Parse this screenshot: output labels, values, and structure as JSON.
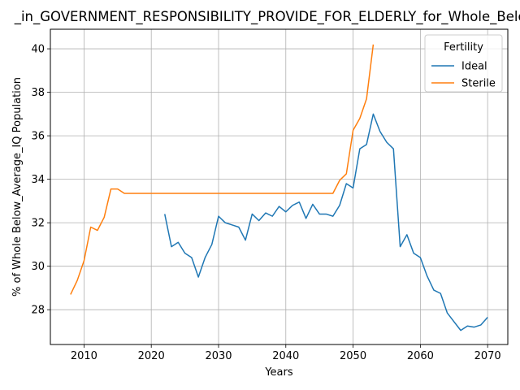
{
  "chart_data": {
    "type": "line",
    "title": "_in_GOVERNMENT_RESPONSIBILITY_PROVIDE_FOR_ELDERLY_for_Whole_Below_",
    "xlabel": "Years",
    "ylabel": "% of Whole Below_Average_IQ Population",
    "xlim": [
      2005,
      2073
    ],
    "ylim": [
      26.4,
      40.9
    ],
    "xticks": [
      2010,
      2020,
      2030,
      2040,
      2050,
      2060,
      2070
    ],
    "yticks": [
      28,
      30,
      32,
      34,
      36,
      38,
      40
    ],
    "grid": true,
    "legend": {
      "title": "Fertility",
      "placement": "top-right"
    },
    "series": [
      {
        "name": "Ideal",
        "color": "#1f77b4",
        "x": [
          2022,
          2023,
          2024,
          2025,
          2026,
          2027,
          2028,
          2029,
          2030,
          2031,
          2032,
          2033,
          2034,
          2035,
          2036,
          2037,
          2038,
          2039,
          2040,
          2041,
          2042,
          2043,
          2044,
          2045,
          2046,
          2047,
          2048,
          2049,
          2050,
          2051,
          2052,
          2053,
          2054,
          2055,
          2056,
          2057,
          2058,
          2059,
          2060,
          2061,
          2062,
          2063,
          2064,
          2065,
          2066,
          2067,
          2068,
          2069,
          2070
        ],
        "y": [
          32.4,
          30.9,
          31.1,
          30.6,
          30.4,
          29.5,
          30.4,
          31.0,
          32.3,
          32.0,
          31.9,
          31.8,
          31.2,
          32.4,
          32.1,
          32.45,
          32.3,
          32.75,
          32.5,
          32.8,
          32.95,
          32.2,
          32.85,
          32.4,
          32.4,
          32.3,
          32.8,
          33.8,
          33.6,
          35.4,
          35.6,
          37.0,
          36.2,
          35.7,
          35.4,
          30.9,
          31.45,
          30.6,
          30.4,
          29.55,
          28.9,
          28.75,
          27.85,
          27.45,
          27.05,
          27.25,
          27.2,
          27.3,
          27.65
        ]
      },
      {
        "name": "Sterile",
        "color": "#ff7f0e",
        "x": [
          2008,
          2009,
          2010,
          2011,
          2012,
          2013,
          2014,
          2015,
          2016,
          2017,
          2018,
          2019,
          2020,
          2021,
          2022,
          2023,
          2024,
          2025,
          2026,
          2027,
          2028,
          2029,
          2030,
          2031,
          2032,
          2033,
          2034,
          2035,
          2036,
          2037,
          2038,
          2039,
          2040,
          2041,
          2042,
          2043,
          2044,
          2045,
          2046,
          2047,
          2048,
          2049,
          2050,
          2051,
          2052,
          2053
        ],
        "y": [
          28.7,
          29.35,
          30.25,
          31.8,
          31.65,
          32.25,
          33.55,
          33.55,
          33.35,
          33.35,
          33.35,
          33.35,
          33.35,
          33.35,
          33.35,
          33.35,
          33.35,
          33.35,
          33.35,
          33.35,
          33.35,
          33.35,
          33.35,
          33.35,
          33.35,
          33.35,
          33.35,
          33.35,
          33.35,
          33.35,
          33.35,
          33.35,
          33.35,
          33.35,
          33.35,
          33.35,
          33.35,
          33.35,
          33.35,
          33.35,
          33.95,
          34.25,
          36.25,
          36.8,
          37.7,
          40.2
        ]
      }
    ]
  }
}
